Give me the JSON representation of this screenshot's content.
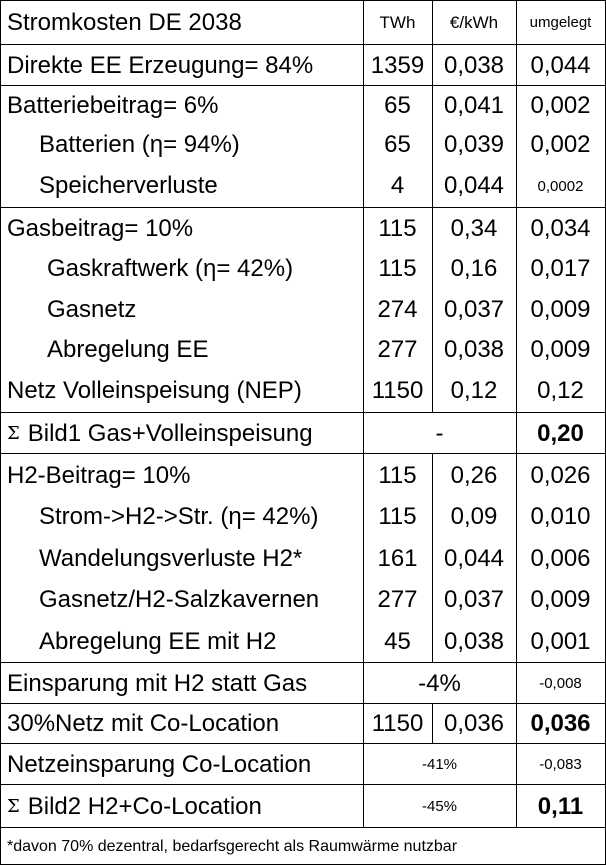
{
  "table": {
    "title": "Stromkosten DE 2038",
    "headers": {
      "twh": "TWh",
      "eur": "€/kWh",
      "umgelegt": "umgelegt"
    },
    "rows": [
      {
        "label": "Direkte EE Erzeugung= 84%",
        "twh": "1359",
        "eur": "0,038",
        "umgelegt": "0,044"
      },
      {
        "label": "Batteriebeitrag= 6%",
        "twh": "65",
        "eur": "0,041",
        "umgelegt": "0,002"
      },
      {
        "label": "Batterien (η= 94%)",
        "twh": "65",
        "eur": "0,039",
        "umgelegt": "0,002"
      },
      {
        "label": "Speicherverluste",
        "twh": "4",
        "eur": "0,044",
        "umgelegt": "0,0002"
      },
      {
        "label": "Gasbeitrag= 10%",
        "twh": "115",
        "eur": "0,34",
        "umgelegt": "0,034"
      },
      {
        "label": "Gaskraftwerk (η= 42%)",
        "twh": "115",
        "eur": "0,16",
        "umgelegt": "0,017"
      },
      {
        "label": "Gasnetz",
        "twh": "274",
        "eur": "0,037",
        "umgelegt": "0,009"
      },
      {
        "label": "Abregelung EE",
        "twh": "277",
        "eur": "0,038",
        "umgelegt": "0,009"
      },
      {
        "label": "Netz Volleinspeisung (NEP)",
        "twh": "1150",
        "eur": "0,12",
        "umgelegt": "0,12"
      },
      {
        "sigma": "Σ",
        "label": "Bild1 Gas+Volleinspeisung",
        "merged": "-",
        "umgelegt": "0,20"
      },
      {
        "label": "H2-Beitrag= 10%",
        "twh": "115",
        "eur": "0,26",
        "umgelegt": "0,026"
      },
      {
        "label": "Strom->H2->Str. (η= 42%)",
        "twh": "115",
        "eur": "0,09",
        "umgelegt": "0,010"
      },
      {
        "label": "Wandelungsverluste H2*",
        "twh": "161",
        "eur": "0,044",
        "umgelegt": "0,006"
      },
      {
        "label": "Gasnetz/H2-Salzkavernen",
        "twh": "277",
        "eur": "0,037",
        "umgelegt": "0,009"
      },
      {
        "label": "Abregelung EE mit H2",
        "twh": "45",
        "eur": "0,038",
        "umgelegt": "0,001"
      },
      {
        "label": "Einsparung mit H2 statt Gas",
        "merged": "-4%",
        "umgelegt": "-0,008"
      },
      {
        "label": "30%Netz mit Co-Location",
        "twh": "1150",
        "eur": "0,036",
        "umgelegt": "0,036"
      },
      {
        "label": "Netzeinsparung Co-Location",
        "merged": "-41%",
        "umgelegt": "-0,083"
      },
      {
        "sigma": "Σ",
        "label": "Bild2 H2+Co-Location",
        "merged": "-45%",
        "umgelegt": "0,11"
      }
    ],
    "footnote": "*davon 70% dezentral, bedarfsgerecht als Raumwärme nutzbar"
  }
}
